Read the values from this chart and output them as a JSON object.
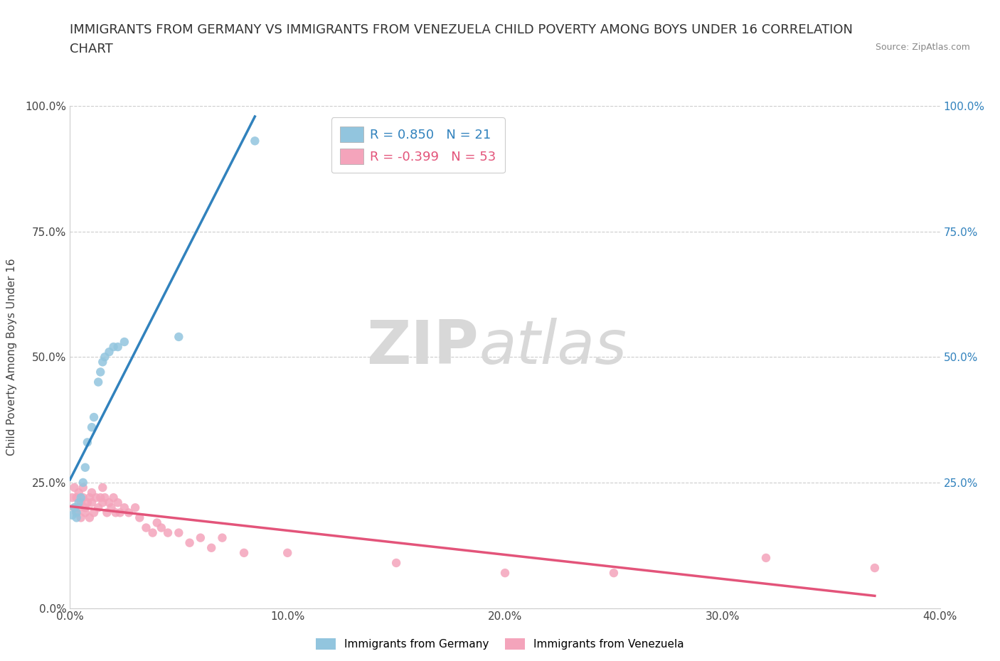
{
  "title_line1": "IMMIGRANTS FROM GERMANY VS IMMIGRANTS FROM VENEZUELA CHILD POVERTY AMONG BOYS UNDER 16 CORRELATION",
  "title_line2": "CHART",
  "source": "Source: ZipAtlas.com",
  "ylabel": "Child Poverty Among Boys Under 16",
  "germany_r": 0.85,
  "germany_n": 21,
  "venezuela_r": -0.399,
  "venezuela_n": 53,
  "germany_color": "#92c5de",
  "venezuela_color": "#f4a4bb",
  "germany_line_color": "#3182bd",
  "venezuela_line_color": "#e3547a",
  "germany_scatter": [
    [
      0.001,
      0.185
    ],
    [
      0.002,
      0.2
    ],
    [
      0.003,
      0.18
    ],
    [
      0.003,
      0.19
    ],
    [
      0.004,
      0.21
    ],
    [
      0.005,
      0.22
    ],
    [
      0.006,
      0.25
    ],
    [
      0.007,
      0.28
    ],
    [
      0.008,
      0.33
    ],
    [
      0.01,
      0.36
    ],
    [
      0.011,
      0.38
    ],
    [
      0.013,
      0.45
    ],
    [
      0.014,
      0.47
    ],
    [
      0.015,
      0.49
    ],
    [
      0.016,
      0.5
    ],
    [
      0.018,
      0.51
    ],
    [
      0.02,
      0.52
    ],
    [
      0.022,
      0.52
    ],
    [
      0.025,
      0.53
    ],
    [
      0.05,
      0.54
    ],
    [
      0.085,
      0.93
    ]
  ],
  "venezuela_scatter": [
    [
      0.001,
      0.22
    ],
    [
      0.002,
      0.24
    ],
    [
      0.002,
      0.2
    ],
    [
      0.003,
      0.22
    ],
    [
      0.003,
      0.19
    ],
    [
      0.004,
      0.23
    ],
    [
      0.004,
      0.2
    ],
    [
      0.005,
      0.21
    ],
    [
      0.005,
      0.18
    ],
    [
      0.006,
      0.22
    ],
    [
      0.006,
      0.24
    ],
    [
      0.007,
      0.2
    ],
    [
      0.007,
      0.19
    ],
    [
      0.008,
      0.21
    ],
    [
      0.009,
      0.22
    ],
    [
      0.009,
      0.18
    ],
    [
      0.01,
      0.21
    ],
    [
      0.01,
      0.23
    ],
    [
      0.011,
      0.19
    ],
    [
      0.012,
      0.22
    ],
    [
      0.013,
      0.2
    ],
    [
      0.014,
      0.22
    ],
    [
      0.015,
      0.24
    ],
    [
      0.015,
      0.21
    ],
    [
      0.016,
      0.22
    ],
    [
      0.017,
      0.19
    ],
    [
      0.018,
      0.21
    ],
    [
      0.019,
      0.2
    ],
    [
      0.02,
      0.22
    ],
    [
      0.021,
      0.19
    ],
    [
      0.022,
      0.21
    ],
    [
      0.023,
      0.19
    ],
    [
      0.025,
      0.2
    ],
    [
      0.027,
      0.19
    ],
    [
      0.03,
      0.2
    ],
    [
      0.032,
      0.18
    ],
    [
      0.035,
      0.16
    ],
    [
      0.038,
      0.15
    ],
    [
      0.04,
      0.17
    ],
    [
      0.042,
      0.16
    ],
    [
      0.045,
      0.15
    ],
    [
      0.05,
      0.15
    ],
    [
      0.055,
      0.13
    ],
    [
      0.06,
      0.14
    ],
    [
      0.065,
      0.12
    ],
    [
      0.07,
      0.14
    ],
    [
      0.08,
      0.11
    ],
    [
      0.1,
      0.11
    ],
    [
      0.15,
      0.09
    ],
    [
      0.2,
      0.07
    ],
    [
      0.25,
      0.07
    ],
    [
      0.32,
      0.1
    ],
    [
      0.37,
      0.08
    ]
  ],
  "xlim": [
    0.0,
    0.4
  ],
  "ylim": [
    0.0,
    1.0
  ],
  "xticks": [
    0.0,
    0.1,
    0.2,
    0.3,
    0.4
  ],
  "yticks": [
    0.0,
    0.25,
    0.5,
    0.75,
    1.0
  ],
  "right_yticks": [
    0.25,
    0.5,
    0.75,
    1.0
  ],
  "grid_color": "#cccccc",
  "grid_style": "--",
  "background_color": "#ffffff",
  "watermark_zip": "ZIP",
  "watermark_atlas": "atlas",
  "title_fontsize": 13,
  "axis_label_fontsize": 11,
  "tick_fontsize": 11,
  "legend_fontsize": 13
}
